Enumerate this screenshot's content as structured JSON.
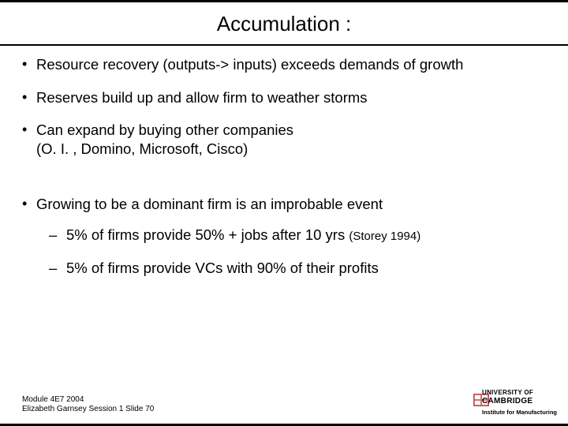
{
  "title": "Accumulation :",
  "bullets": {
    "b1": "Resource recovery (outputs-> inputs) exceeds demands of growth",
    "b2": "Reserves build up and allow firm to weather storms",
    "b3a": "Can expand by buying other companies",
    "b3b": "(O. I. , Domino, Microsoft, Cisco)",
    "b4": "Growing to be a dominant firm is an improbable event",
    "s1_main": "5% of firms provide 50% + jobs after 10 yrs ",
    "s1_cite": "(Storey 1994)",
    "s2": "5% of firms provide VCs with 90% of their profits"
  },
  "footer": {
    "line1": "Module 4E7 2004",
    "line2": "Elizabeth Garnsey Session 1 Slide 70"
  },
  "brand": {
    "line1": "UNIVERSITY OF",
    "line2": "CAMBRIDGE",
    "line3": "Institute for Manufacturing"
  },
  "colors": {
    "text": "#000000",
    "background": "#ffffff",
    "rule": "#000000",
    "crest": "#c05050"
  },
  "fonts": {
    "body_family": "Arial",
    "title_size_pt": 20,
    "body_size_pt": 14,
    "footer_size_pt": 8
  }
}
